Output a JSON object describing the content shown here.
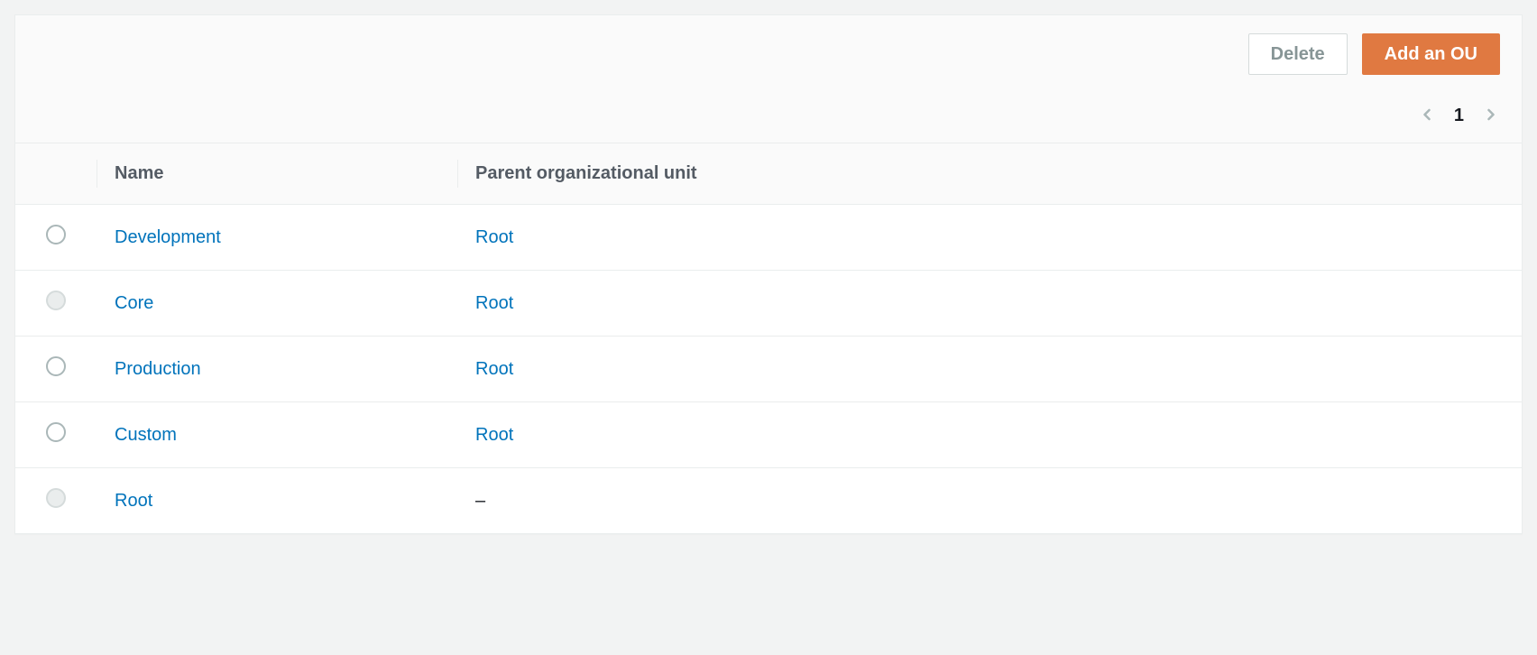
{
  "colors": {
    "page_bg": "#f2f3f3",
    "panel_bg": "#ffffff",
    "header_bg": "#fafafa",
    "border": "#eaeded",
    "link": "#0073bb",
    "btn_primary_bg": "#e07941",
    "btn_primary_text": "#ffffff",
    "btn_secondary_text": "#879596",
    "text": "#16191f",
    "header_text": "#545b64",
    "radio_border": "#aab7b8",
    "radio_disabled_bg": "#eaeded"
  },
  "toolbar": {
    "delete_label": "Delete",
    "add_label": "Add an OU"
  },
  "pagination": {
    "current_page": "1"
  },
  "table": {
    "columns": {
      "name": "Name",
      "parent": "Parent organizational unit"
    },
    "rows": [
      {
        "name": "Development",
        "parent": "Root",
        "parent_is_link": true,
        "radio_disabled": false
      },
      {
        "name": "Core",
        "parent": "Root",
        "parent_is_link": true,
        "radio_disabled": true
      },
      {
        "name": "Production",
        "parent": "Root",
        "parent_is_link": true,
        "radio_disabled": false
      },
      {
        "name": "Custom",
        "parent": "Root",
        "parent_is_link": true,
        "radio_disabled": false
      },
      {
        "name": "Root",
        "parent": "–",
        "parent_is_link": false,
        "radio_disabled": true
      }
    ]
  }
}
